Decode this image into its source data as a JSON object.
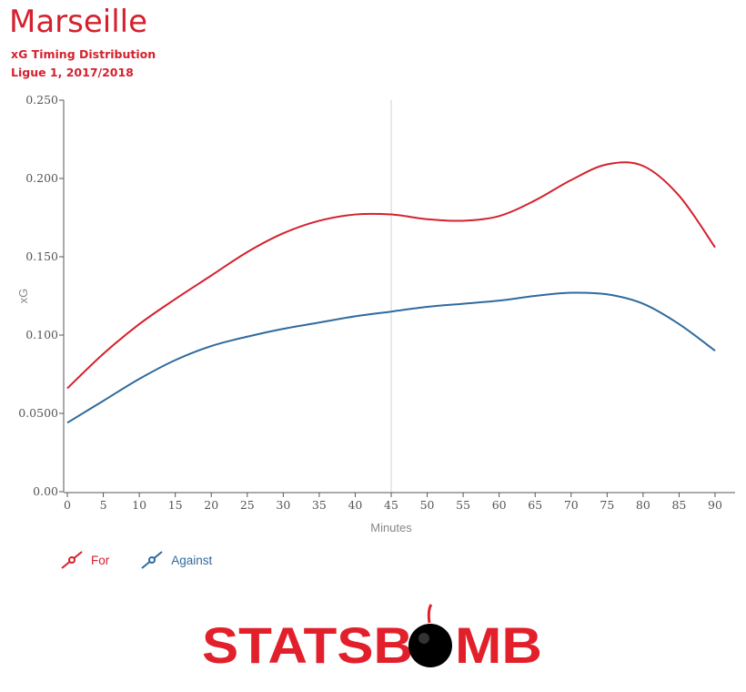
{
  "header": {
    "title": "Marseille",
    "subtitle": "xG Timing Distribution",
    "season": "Ligue 1, 2017/2018"
  },
  "colors": {
    "for": "#d4212d",
    "against": "#2f6a9e",
    "title": "#d4212d",
    "halftime_line": "#d9d9d9",
    "logo_red": "#e2202b"
  },
  "chart_data": {
    "type": "line",
    "title": "xG Timing Distribution",
    "xlabel": "Minutes",
    "ylabel": "xG",
    "xlim": [
      0,
      90
    ],
    "ylim": [
      0,
      0.25
    ],
    "x_ticks": [
      0,
      5,
      10,
      15,
      20,
      25,
      30,
      35,
      40,
      45,
      50,
      55,
      60,
      65,
      70,
      75,
      80,
      85,
      90
    ],
    "x_tick_labels": [
      "0",
      "5",
      "10",
      "15",
      "20",
      "25",
      "30",
      "35",
      "40",
      "45",
      "50",
      "55",
      "60",
      "65",
      "70",
      "75",
      "80",
      "85",
      "90"
    ],
    "y_ticks": [
      0,
      0.05,
      0.1,
      0.15,
      0.2,
      0.25
    ],
    "y_tick_labels": [
      "0.00",
      "0.0500",
      "0.100",
      "0.150",
      "0.200",
      "0.250"
    ],
    "reference_line_x": 45,
    "grid": false,
    "legend_position": "bottom-left",
    "x": [
      0,
      5,
      10,
      15,
      20,
      25,
      30,
      35,
      40,
      45,
      50,
      55,
      60,
      65,
      70,
      75,
      80,
      85,
      90
    ],
    "series": [
      {
        "name": "For",
        "values": [
          0.066,
          0.088,
          0.107,
          0.123,
          0.138,
          0.153,
          0.165,
          0.173,
          0.177,
          0.177,
          0.174,
          0.173,
          0.176,
          0.186,
          0.199,
          0.209,
          0.208,
          0.189,
          0.156
        ]
      },
      {
        "name": "Against",
        "values": [
          0.044,
          0.058,
          0.072,
          0.084,
          0.093,
          0.099,
          0.104,
          0.108,
          0.112,
          0.115,
          0.118,
          0.12,
          0.122,
          0.125,
          0.127,
          0.126,
          0.12,
          0.107,
          0.09
        ]
      }
    ]
  },
  "legend": {
    "items": [
      {
        "label": "For",
        "icon": "red-line-marker-icon"
      },
      {
        "label": "Against",
        "icon": "blue-line-marker-icon"
      }
    ]
  },
  "logo": {
    "text_left": "STATSB",
    "text_right": "MB",
    "icon": "bomb-icon"
  }
}
